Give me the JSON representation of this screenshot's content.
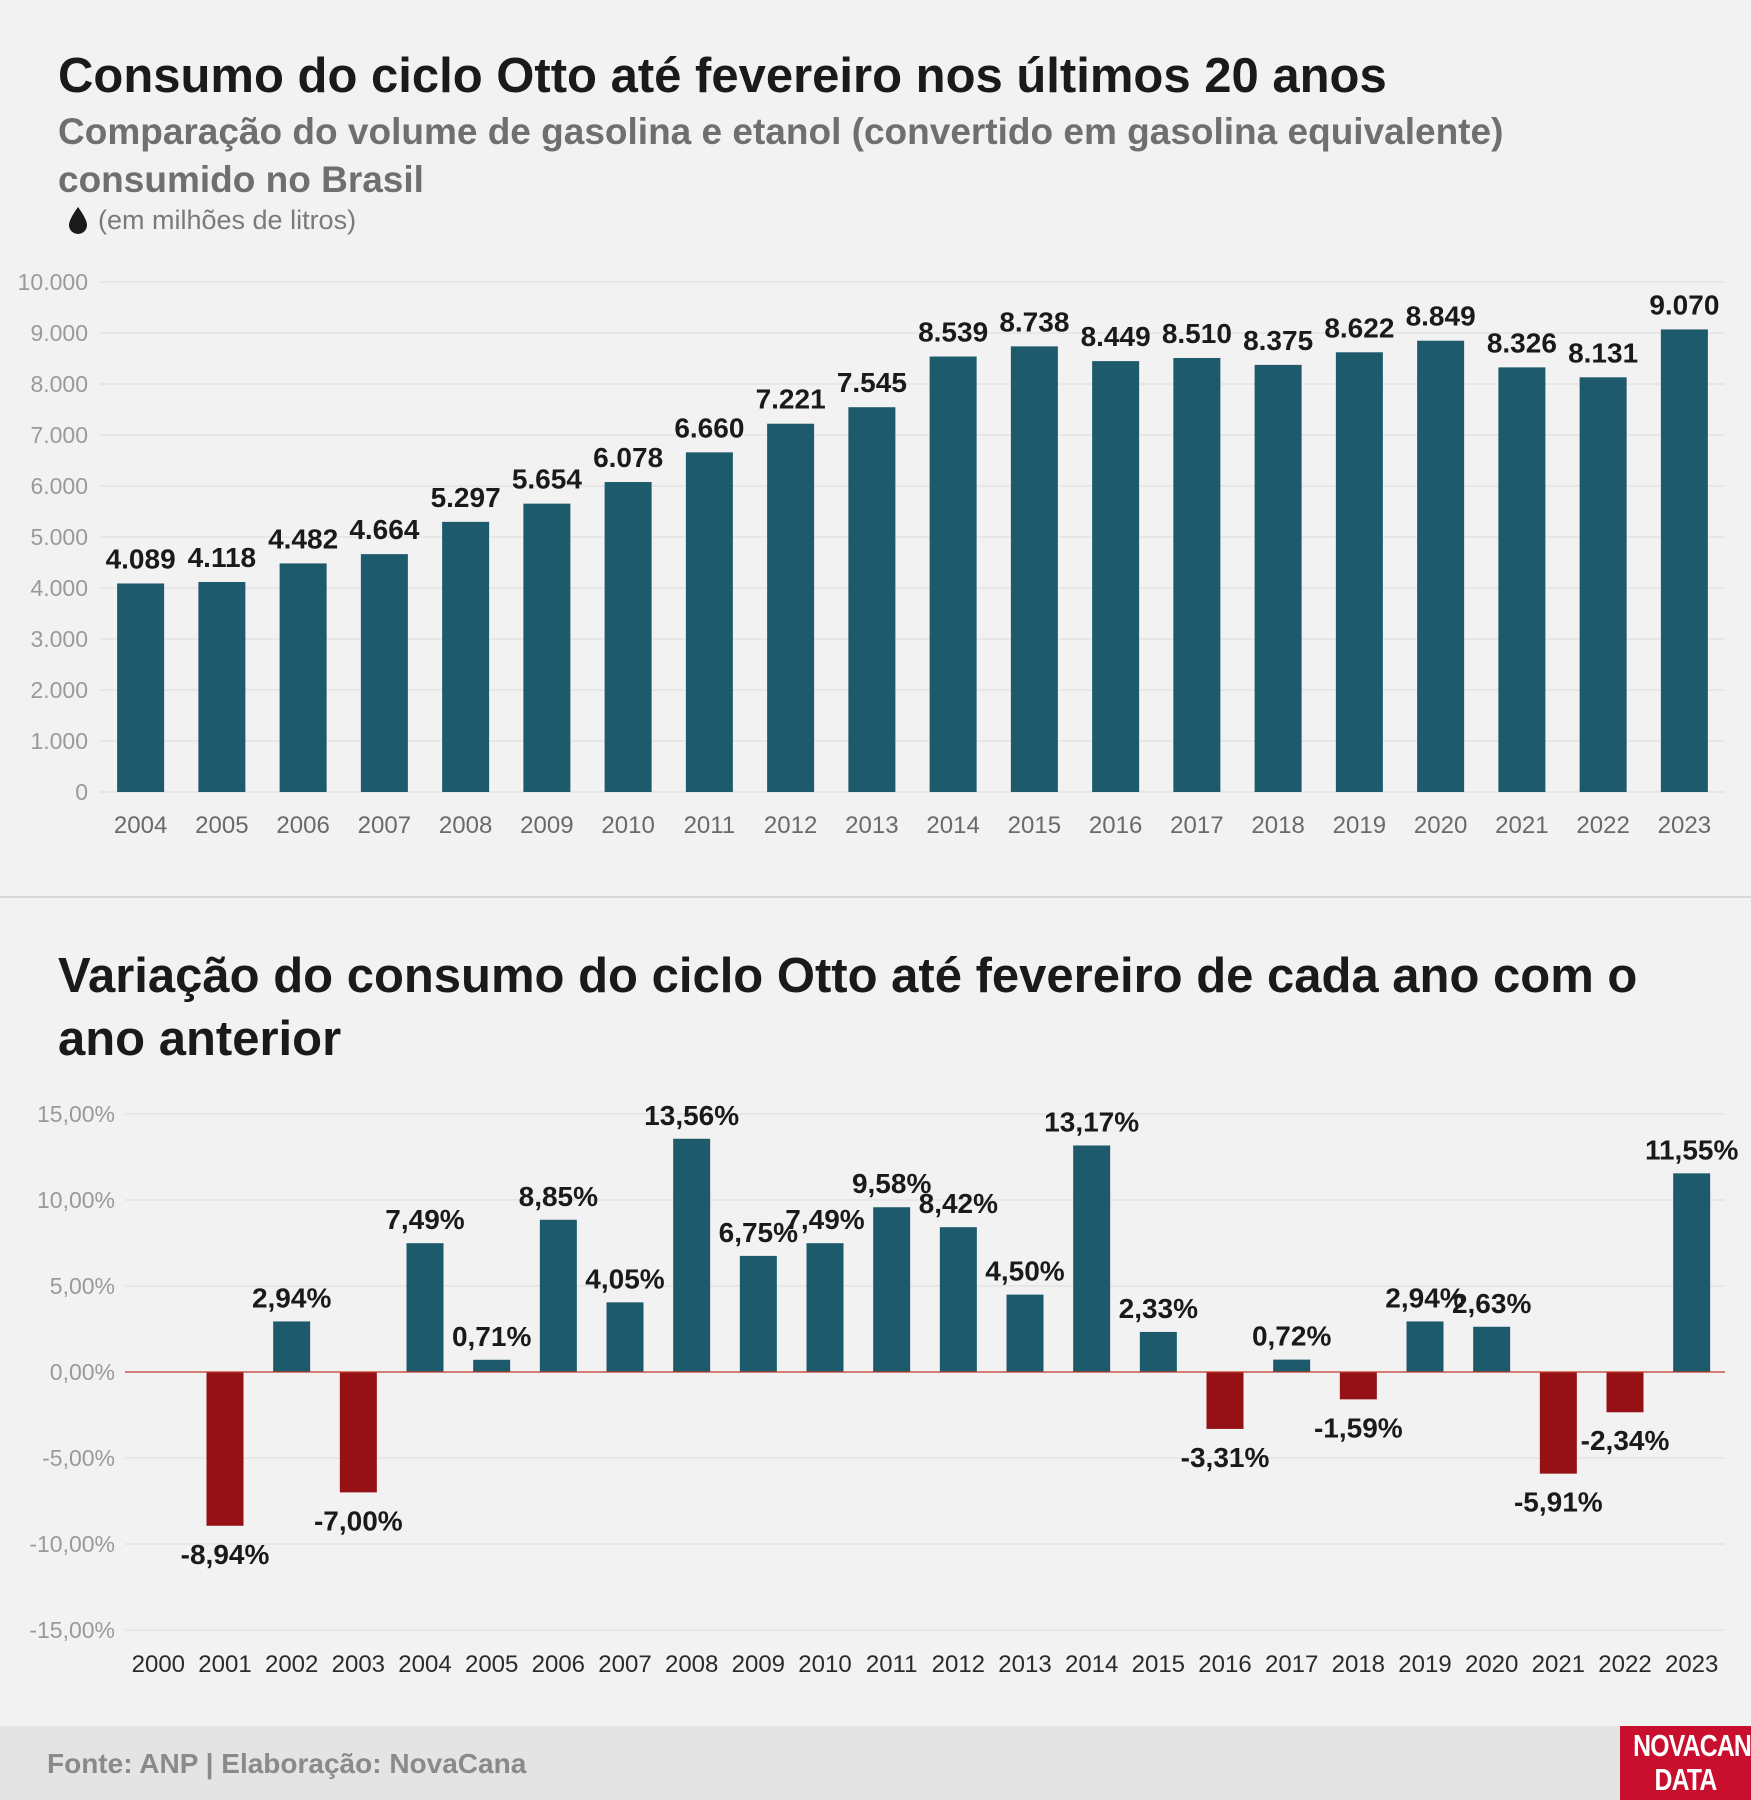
{
  "chart_data": [
    {
      "type": "bar",
      "title": "Consumo do ciclo Otto até fevereiro nos últimos 20 anos",
      "subtitle": "Comparação do volume de gasolina e etanol (convertido em gasolina equivalente) consumido no Brasil",
      "unit_label": "(em milhões de litros)",
      "categories": [
        "2004",
        "2005",
        "2006",
        "2007",
        "2008",
        "2009",
        "2010",
        "2011",
        "2012",
        "2013",
        "2014",
        "2015",
        "2016",
        "2017",
        "2018",
        "2019",
        "2020",
        "2021",
        "2022",
        "2023"
      ],
      "values": [
        4089,
        4118,
        4482,
        4664,
        5297,
        5654,
        6078,
        6660,
        7221,
        7545,
        8539,
        8738,
        8449,
        8510,
        8375,
        8622,
        8849,
        8326,
        8131,
        9070
      ],
      "value_labels": [
        "4.089",
        "4.118",
        "4.482",
        "4.664",
        "5.297",
        "5.654",
        "6.078",
        "6.660",
        "7.221",
        "7.545",
        "8.539",
        "8.738",
        "8.449",
        "8.510",
        "8.375",
        "8.622",
        "8.849",
        "8.326",
        "8.131",
        "9.070"
      ],
      "ylim": [
        0,
        10000
      ],
      "yticks": [
        0,
        1000,
        2000,
        3000,
        4000,
        5000,
        6000,
        7000,
        8000,
        9000,
        10000
      ],
      "ytick_labels": [
        "0",
        "1.000",
        "2.000",
        "3.000",
        "4.000",
        "5.000",
        "6.000",
        "7.000",
        "8.000",
        "9.000",
        "10.000"
      ],
      "grid": true,
      "color": "#1d5a6c"
    },
    {
      "type": "bar",
      "title": "Variação do consumo do ciclo Otto até fevereiro de cada ano com o ano anterior",
      "categories": [
        "2000",
        "2001",
        "2002",
        "2003",
        "2004",
        "2005",
        "2006",
        "2007",
        "2008",
        "2009",
        "2010",
        "2011",
        "2012",
        "2013",
        "2014",
        "2015",
        "2016",
        "2017",
        "2018",
        "2019",
        "2020",
        "2021",
        "2022",
        "2023"
      ],
      "values": [
        null,
        -8.94,
        2.94,
        -7.0,
        7.49,
        0.71,
        8.85,
        4.05,
        13.56,
        6.75,
        7.49,
        9.58,
        8.42,
        4.5,
        13.17,
        2.33,
        -3.31,
        0.72,
        -1.59,
        2.94,
        2.63,
        -5.91,
        -2.34,
        11.55
      ],
      "value_labels": [
        "",
        "-8,94%",
        "2,94%",
        "-7,00%",
        "7,49%",
        "0,71%",
        "8,85%",
        "4,05%",
        "13,56%",
        "6,75%",
        "7,49%",
        "9,58%",
        "8,42%",
        "4,50%",
        "13,17%",
        "2,33%",
        "-3,31%",
        "0,72%",
        "-1,59%",
        "2,94%",
        "2,63%",
        "-5,91%",
        "-2,34%",
        "11,55%"
      ],
      "ylim": [
        -15,
        15
      ],
      "yticks": [
        -15,
        -10,
        -5,
        0,
        5,
        10,
        15
      ],
      "ytick_labels": [
        "-15,00%",
        "-10,00%",
        "-5,00%",
        "0,00%",
        "5,00%",
        "10,00%",
        "15,00%"
      ],
      "grid": true,
      "positive_color": "#1d5a6c",
      "negative_color": "#951115"
    }
  ],
  "footer": {
    "source": "Fonte: ANP | Elaboração: NovaCana",
    "logo_line1": "NOVACANA",
    "logo_line2": "DATA"
  }
}
